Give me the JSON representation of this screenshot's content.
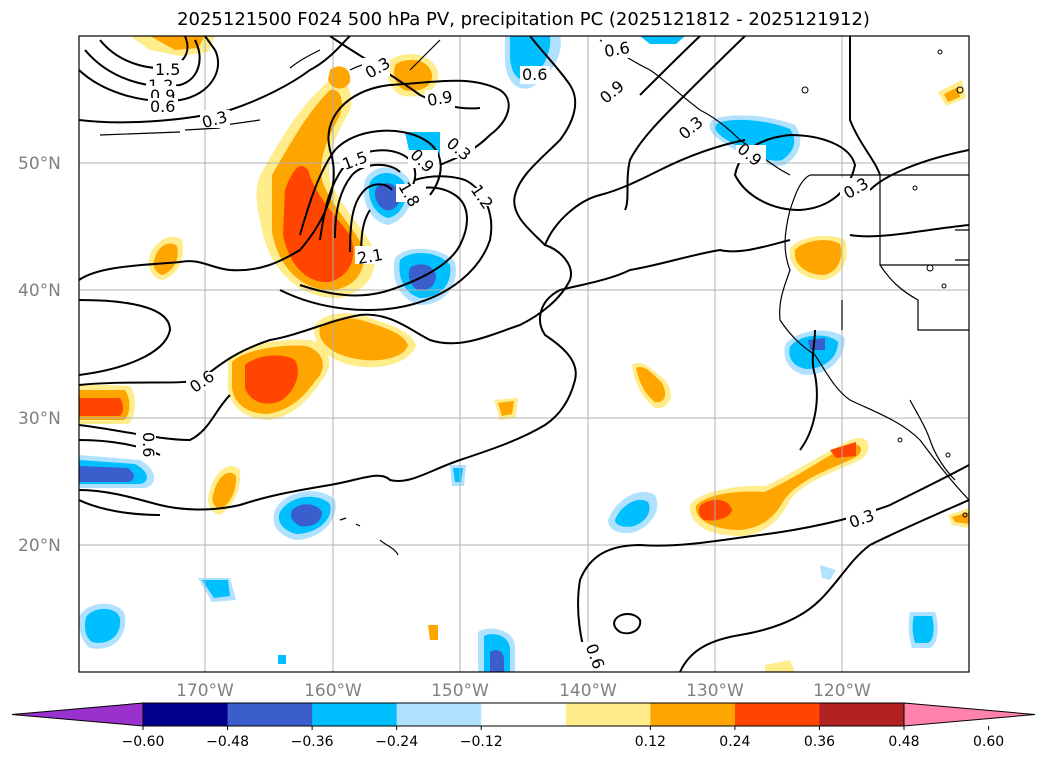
{
  "title": "2025121500 F024 500 hPa PV, precipitation PC (2025121812 - 2025121912)",
  "map": {
    "lat_labels": [
      "50°N",
      "40°N",
      "30°N",
      "20°N"
    ],
    "lon_labels": [
      "170°W",
      "160°W",
      "150°W",
      "140°W",
      "130°W",
      "120°W"
    ],
    "contour_labels": [
      "1.5",
      "1.2",
      "0.9",
      "0.6",
      "0.3",
      "0.3",
      "0.6",
      "0.9",
      "0.6",
      "0.9",
      "0.3",
      "1.5",
      "1.8",
      "2.1",
      "0.9",
      "1.2",
      "0.3",
      "0.6",
      "0.6",
      "0.9",
      "0.3",
      "0.3",
      "0.6"
    ]
  },
  "colorbar": {
    "labels": [
      "−0.60",
      "−0.48",
      "−0.36",
      "−0.24",
      "−0.12",
      "0.12",
      "0.24",
      "0.36",
      "0.48",
      "0.60"
    ],
    "colors": [
      "#9932cc",
      "#00008b",
      "#3a5fcd",
      "#00bfff",
      "#b0e2ff",
      "#ffffff",
      "#ffec8b",
      "#ffa500",
      "#ff4500",
      "#b22222",
      "#ff82ab"
    ]
  }
}
